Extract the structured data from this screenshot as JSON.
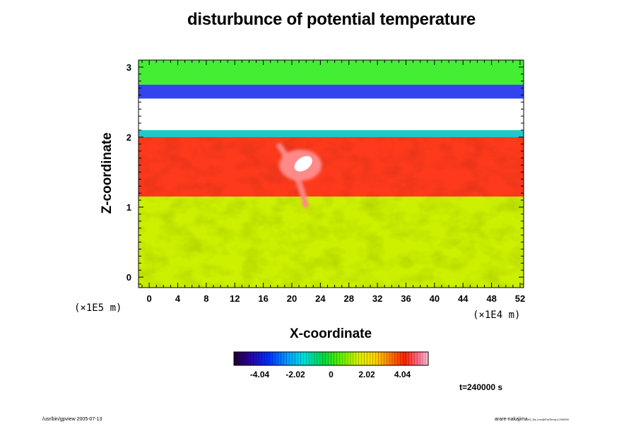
{
  "chart_data": {
    "type": "heatmap",
    "title": "disturbunce of potential temperature",
    "xlabel": "X-coordinate",
    "ylabel": "Z-coordinate",
    "x_unit": "(×1E4 m)",
    "z_unit": "(×1E5 m)",
    "xlim": [
      -1.5,
      52.5
    ],
    "zlim": [
      -0.15,
      3.1
    ],
    "x_ticks": [
      0,
      4,
      8,
      12,
      16,
      20,
      24,
      28,
      32,
      36,
      40,
      44,
      48,
      52
    ],
    "z_ticks": [
      0,
      1,
      2,
      3
    ],
    "colorbar": {
      "range": [
        -5.5,
        5.5
      ],
      "tick_values": [
        -4.04,
        -2.02,
        0,
        2.02,
        4.04
      ],
      "tick_labels": [
        "-4.04",
        "-2.02",
        "0",
        "2.02",
        "4.04"
      ]
    },
    "regions": [
      {
        "z": [
          -0.15,
          1.15
        ],
        "value": 1.6,
        "color": "#ccf000"
      },
      {
        "z": [
          1.15,
          2.0
        ],
        "value": 4.3,
        "color": "#ff3a1c"
      },
      {
        "z": [
          2.0,
          2.1
        ],
        "value": -2.0,
        "color": "#22c8c8"
      },
      {
        "z": [
          2.1,
          2.55
        ],
        "value": null,
        "color": "#ffffff"
      },
      {
        "z": [
          2.55,
          2.75
        ],
        "value": -3.0,
        "color": "#3344ee"
      },
      {
        "z": [
          2.75,
          3.1
        ],
        "value": 0.5,
        "color": "#44ee33"
      }
    ],
    "features": [
      {
        "x": 23,
        "z": 1.7,
        "value": 5.3,
        "color": "#ffffff"
      }
    ]
  },
  "time_label": "t=240000 s",
  "footer_left": "/usr/bin/gpview 2005-07-13",
  "footer_right": "arare-nakajima",
  "footer_right_small": "03_Sa-4.nc@PotTemp,t=240000"
}
